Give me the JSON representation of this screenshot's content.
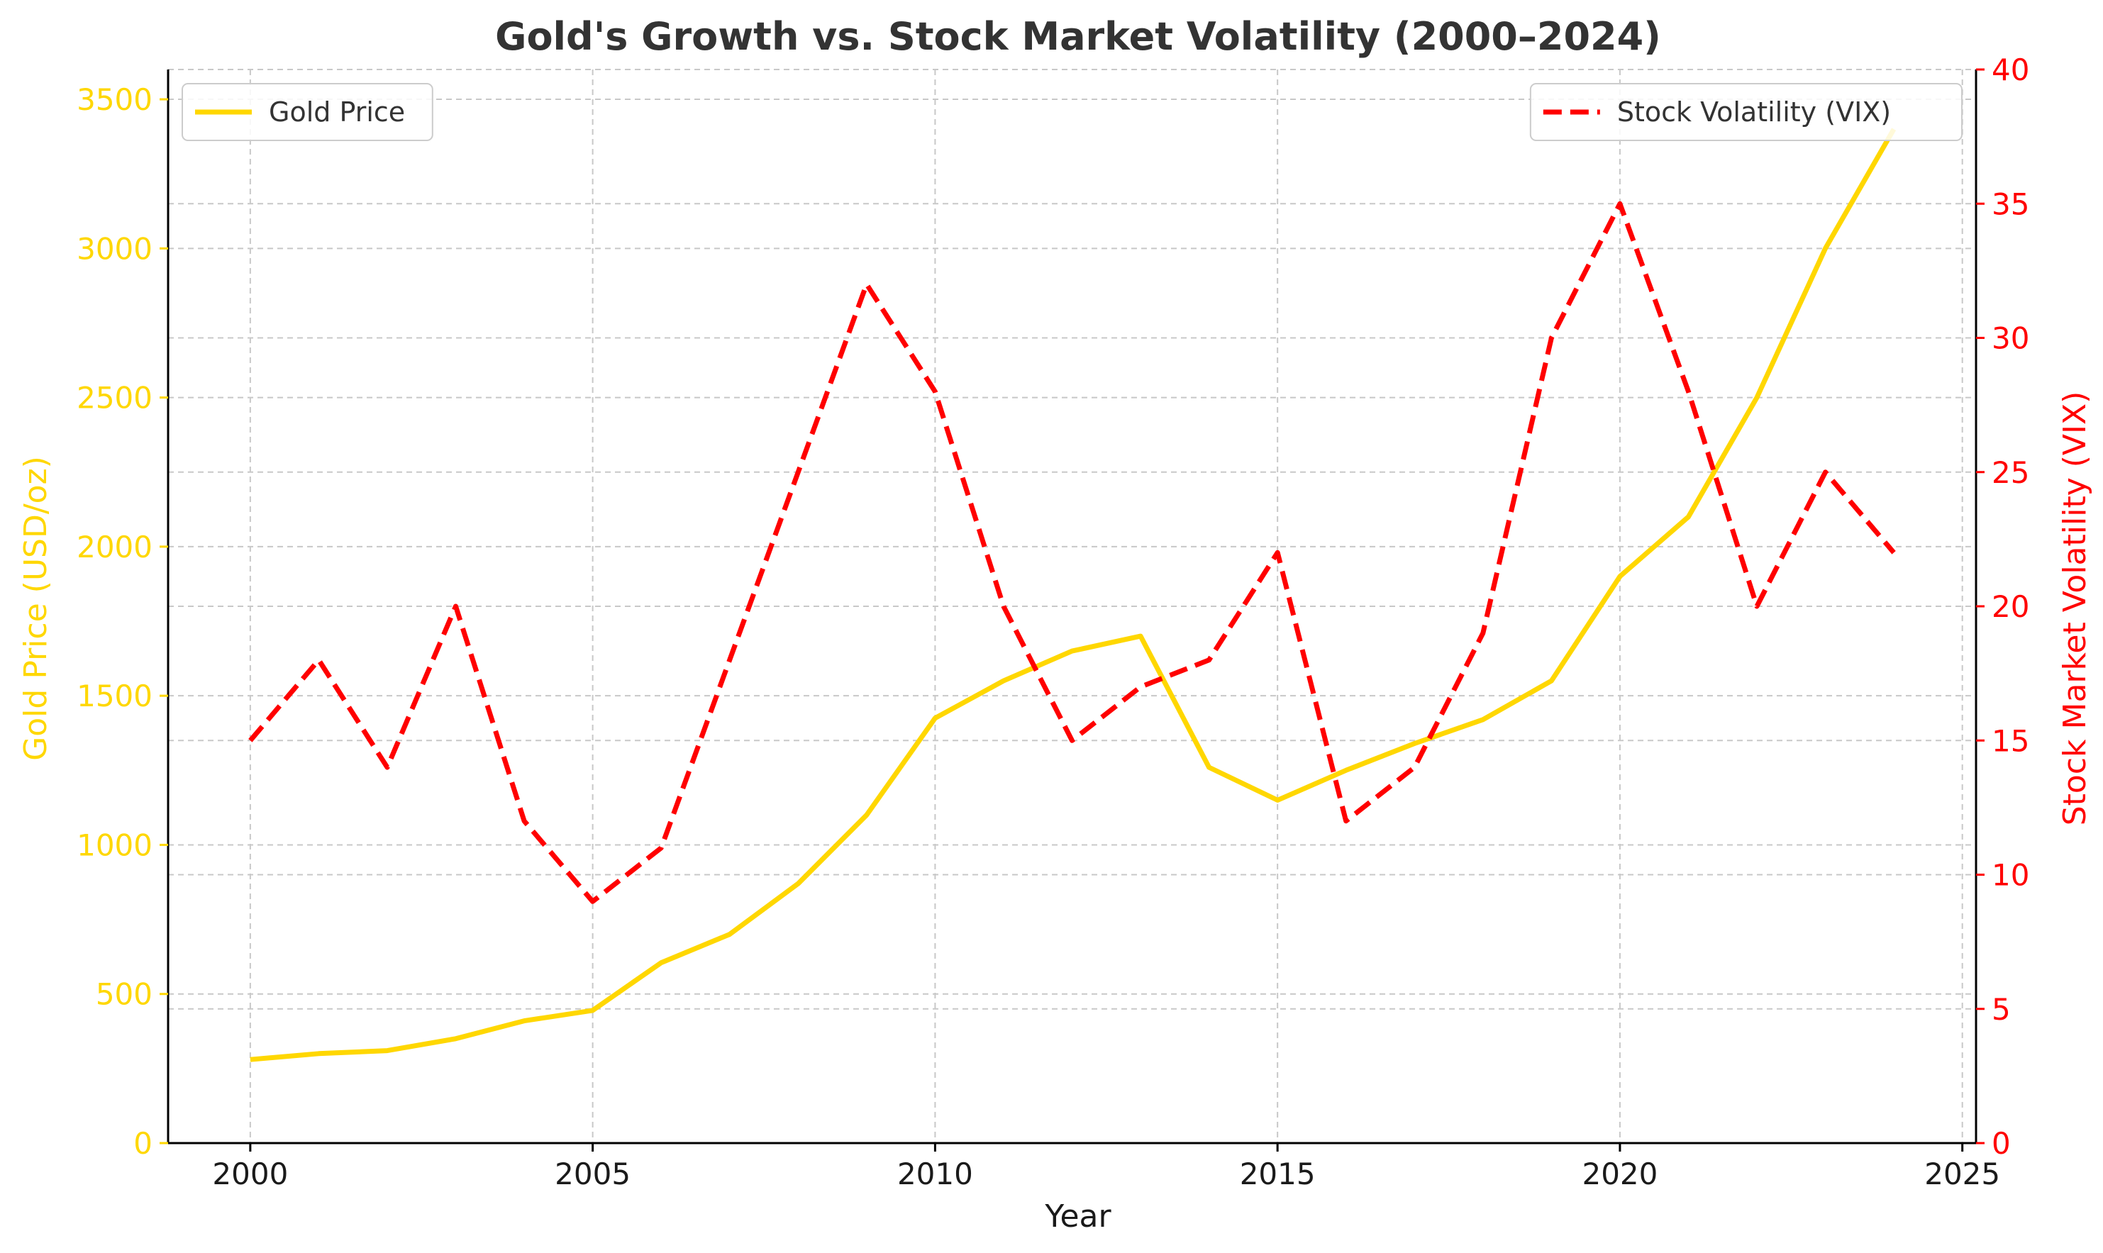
{
  "chart_data": {
    "type": "line",
    "title": "Gold's Growth vs. Stock Market Volatility (2000–2024)",
    "xlabel": "Year",
    "ylabel_left": "Gold Price (USD/oz)",
    "ylabel_right": "Stock Market Volatility (VIX)",
    "xlim": [
      1998.8,
      2025.2
    ],
    "ylim_left": [
      0,
      3600
    ],
    "ylim_right": [
      0,
      40
    ],
    "x_ticks": [
      2000,
      2005,
      2010,
      2015,
      2020,
      2025
    ],
    "y_ticks_left": [
      0,
      500,
      1000,
      1500,
      2000,
      2500,
      3000,
      3500
    ],
    "y_ticks_right": [
      0,
      5,
      10,
      15,
      20,
      25,
      30,
      35,
      40
    ],
    "grid": true,
    "x": [
      2000,
      2001,
      2002,
      2003,
      2004,
      2005,
      2006,
      2007,
      2008,
      2009,
      2010,
      2011,
      2012,
      2013,
      2014,
      2015,
      2016,
      2017,
      2018,
      2019,
      2020,
      2021,
      2022,
      2023,
      2024
    ],
    "series": [
      {
        "name": "Gold Price",
        "axis": "left",
        "color": "#FFD700",
        "style": "solid",
        "values": [
          280,
          300,
          310,
          350,
          410,
          445,
          605,
          700,
          870,
          1100,
          1425,
          1550,
          1650,
          1700,
          1260,
          1150,
          1250,
          1340,
          1420,
          1550,
          1900,
          2100,
          2500,
          3000,
          3400
        ]
      },
      {
        "name": "Stock Volatility (VIX)",
        "axis": "right",
        "color": "#FF0000",
        "style": "dashed",
        "values": [
          15,
          18,
          14,
          20,
          12,
          9,
          11,
          18,
          25,
          32,
          28,
          20,
          15,
          17,
          18,
          22,
          12,
          14,
          19,
          30,
          35,
          28,
          20,
          25,
          22
        ]
      }
    ],
    "legends": [
      {
        "series": 0,
        "position": "top-left"
      },
      {
        "series": 1,
        "position": "top-right"
      }
    ]
  }
}
